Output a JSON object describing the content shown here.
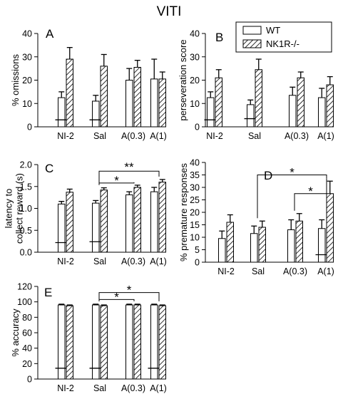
{
  "figure_title": "VITI",
  "legend": {
    "items": [
      {
        "label": "WT",
        "pattern": "open"
      },
      {
        "label": "NK1R-/-",
        "pattern": "hatched"
      }
    ]
  },
  "chart_data": [
    {
      "type": "bar",
      "panel_letter": "A",
      "ylabel": "% omissions",
      "categories": [
        "NI-2",
        "Sal",
        "A(0.3)",
        "A(1)"
      ],
      "ylim": [
        0,
        40
      ],
      "yticks": [
        "0",
        "10",
        "20",
        "30",
        "40"
      ],
      "series": [
        {
          "name": "WT",
          "values": [
            12.5,
            11,
            20,
            20.5
          ],
          "errors": [
            2.5,
            2.5,
            5,
            8.5
          ],
          "baseline_marks": [
            3,
            3,
            null,
            null
          ]
        },
        {
          "name": "NK1R-/-",
          "values": [
            29,
            26,
            25.5,
            20.5
          ],
          "errors": [
            5,
            5,
            3,
            3
          ],
          "baseline_marks": [
            null,
            null,
            null,
            null
          ]
        }
      ],
      "annotations": []
    },
    {
      "type": "bar",
      "panel_letter": "B",
      "ylabel": "perseveration score",
      "categories": [
        "NI-2",
        "Sal",
        "A(0.3)",
        "A(1)"
      ],
      "ylim": [
        0,
        40
      ],
      "yticks": [
        "0",
        "10",
        "20",
        "30",
        "40"
      ],
      "series": [
        {
          "name": "WT",
          "values": [
            12.5,
            9.5,
            13.5,
            12.5
          ],
          "errors": [
            2.5,
            2,
            3.5,
            4
          ],
          "baseline_marks": [
            3,
            3.5,
            null,
            null
          ]
        },
        {
          "name": "NK1R-/-",
          "values": [
            21,
            24.5,
            21,
            18
          ],
          "errors": [
            3.5,
            4.5,
            2.5,
            3.5
          ],
          "baseline_marks": [
            null,
            null,
            null,
            null
          ]
        }
      ],
      "annotations": []
    },
    {
      "type": "bar",
      "panel_letter": "C",
      "ylabel": "latency to\ncollect reward (s)",
      "categories": [
        "NI-2",
        "Sal",
        "A(0.3)",
        "A(1)"
      ],
      "ylim": [
        0,
        2
      ],
      "yticks": [
        "0.0",
        "0.5",
        "1.0",
        "1.5",
        "2.0"
      ],
      "series": [
        {
          "name": "WT",
          "values": [
            1.1,
            1.12,
            1.31,
            1.38
          ],
          "errors": [
            0.06,
            0.06,
            0.07,
            0.1
          ],
          "baseline_marks": [
            0.22,
            0.24,
            null,
            null
          ]
        },
        {
          "name": "NK1R-/-",
          "values": [
            1.37,
            1.42,
            1.48,
            1.6
          ],
          "errors": [
            0.07,
            0.05,
            0.05,
            0.06
          ],
          "baseline_marks": [
            null,
            null,
            null,
            null
          ]
        }
      ],
      "annotations": [
        {
          "text": "**",
          "from": "Sal",
          "to": "A(1)",
          "y": 1.85
        },
        {
          "text": "*",
          "from": "Sal",
          "to": "A(0.3)",
          "y": 1.58
        }
      ]
    },
    {
      "type": "bar",
      "panel_letter": "D",
      "ylabel": "% premature responses",
      "categories": [
        "NI-2",
        "Sal",
        "A(0.3)",
        "A(1)"
      ],
      "ylim": [
        0,
        40
      ],
      "yticks": [
        "0",
        "5",
        "10",
        "15",
        "20",
        "25",
        "30",
        "35",
        "40"
      ],
      "series": [
        {
          "name": "WT",
          "values": [
            9.5,
            11.5,
            13,
            13.5
          ],
          "errors": [
            3,
            3,
            4,
            3.5
          ],
          "baseline_marks": [
            null,
            null,
            null,
            3
          ]
        },
        {
          "name": "NK1R-/-",
          "values": [
            16,
            14,
            16.5,
            27.5
          ],
          "errors": [
            3,
            2.5,
            3,
            5
          ],
          "baseline_marks": [
            null,
            null,
            null,
            null
          ]
        }
      ],
      "annotations": [
        {
          "text": "*",
          "from": "Sal",
          "to": "A(1)",
          "y": 35
        },
        {
          "text": "*",
          "from": "A(0.3)",
          "to": "A(1)",
          "y": 27.5
        }
      ]
    },
    {
      "type": "bar",
      "panel_letter": "E",
      "ylabel": "% accuracy",
      "categories": [
        "NI-2",
        "Sal",
        "A(0.3)",
        "A(1)"
      ],
      "ylim": [
        0,
        120
      ],
      "yticks": [
        "0",
        "20",
        "40",
        "60",
        "80",
        "100",
        "120"
      ],
      "series": [
        {
          "name": "WT",
          "values": [
            96,
            96,
            96,
            96
          ],
          "errors": [
            1,
            1,
            1,
            1
          ],
          "baseline_marks": [
            14,
            14,
            null,
            14
          ]
        },
        {
          "name": "NK1R-/-",
          "values": [
            95,
            95,
            96,
            95
          ],
          "errors": [
            1,
            1,
            1,
            1
          ],
          "baseline_marks": [
            null,
            null,
            null,
            null
          ]
        }
      ],
      "annotations": [
        {
          "text": "*",
          "from": "Sal",
          "to": "A(1)",
          "y": 112
        },
        {
          "text": "*",
          "from": "Sal",
          "to": "A(0.3)",
          "y": 103
        }
      ]
    }
  ]
}
